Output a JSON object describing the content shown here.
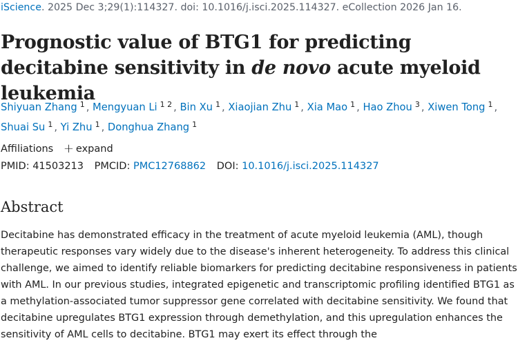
{
  "citation": {
    "journal": "iScience",
    "details": ". 2025 Dec 3;29(1):114327. doi: 10.1016/j.isci.2025.114327. eCollection 2026 Jan 16."
  },
  "title": {
    "part1": "Prognostic value of BTG1 for predicting decitabine sensitivity in ",
    "italic": "de novo",
    "part2": " acute myeloid leukemia"
  },
  "authors": [
    {
      "name": "Shiyuan Zhang",
      "aff": "1"
    },
    {
      "name": "Mengyuan Li",
      "aff": "1 2"
    },
    {
      "name": "Bin Xu",
      "aff": "1"
    },
    {
      "name": "Xiaojian Zhu",
      "aff": "1"
    },
    {
      "name": "Xia Mao",
      "aff": "1"
    },
    {
      "name": "Hao Zhou",
      "aff": "3"
    },
    {
      "name": "Xiwen Tong",
      "aff": "1"
    },
    {
      "name": "Shuai Su",
      "aff": "1"
    },
    {
      "name": "Yi Zhu",
      "aff": "1"
    },
    {
      "name": "Donghua Zhang",
      "aff": "1"
    }
  ],
  "affiliations": {
    "label": "Affiliations",
    "expand_icon": "plus-icon",
    "expand_label": "expand"
  },
  "ids": {
    "pmid_label": "PMID:",
    "pmid": "41503213",
    "pmcid_label": "PMCID:",
    "pmcid": "PMC12768862",
    "doi_label": "DOI:",
    "doi": "10.1016/j.isci.2025.114327"
  },
  "abstract": {
    "heading": "Abstract",
    "text": "Decitabine has demonstrated efficacy in the treatment of acute myeloid leukemia (AML), though therapeutic responses vary widely due to the disease's inherent heterogeneity. To address this clinical challenge, we aimed to identify reliable biomarkers for predicting decitabine responsiveness in patients with AML. In our previous studies, integrated epigenetic and transcriptomic profiling identified BTG1 as a methylation-associated tumor suppressor gene correlated with decitabine sensitivity. We found that decitabine upregulates BTG1 expression through demethylation, and this upregulation enhances the sensitivity of AML cells to decitabine. BTG1 may exert its effect through the"
  },
  "colors": {
    "link": "#0071bc",
    "text": "#212121",
    "muted": "#5b616b"
  }
}
